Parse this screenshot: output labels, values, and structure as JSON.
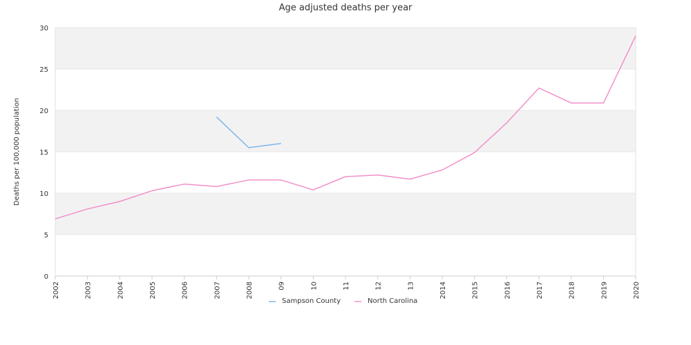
{
  "chart_data": {
    "type": "line",
    "title": "Age adjusted deaths per year",
    "xlabel": "",
    "ylabel": "Deaths per 100,000 population",
    "ylim": [
      0,
      30
    ],
    "yticks": [
      0,
      5,
      10,
      15,
      20,
      25,
      30
    ],
    "categories": [
      "2002",
      "2003",
      "2004",
      "2005",
      "2006",
      "2007",
      "2008",
      "09",
      "10",
      "11",
      "12",
      "13",
      "2014",
      "2015",
      "2016",
      "2017",
      "2018",
      "2019",
      "2020"
    ],
    "grid": true,
    "legend_position": "bottom-center",
    "series": [
      {
        "name": "Sampson County",
        "color": "#7cb5ec",
        "values": [
          null,
          null,
          null,
          null,
          null,
          19.2,
          15.5,
          16.0,
          null,
          null,
          null,
          null,
          null,
          null,
          null,
          null,
          null,
          null,
          null
        ]
      },
      {
        "name": "North Carolina",
        "color": "#f28fc8",
        "values": [
          6.9,
          8.1,
          9.0,
          10.3,
          11.1,
          10.8,
          11.6,
          11.6,
          10.4,
          12.0,
          12.2,
          11.7,
          12.8,
          14.9,
          18.5,
          22.7,
          20.9,
          20.9,
          29.0
        ]
      }
    ]
  }
}
